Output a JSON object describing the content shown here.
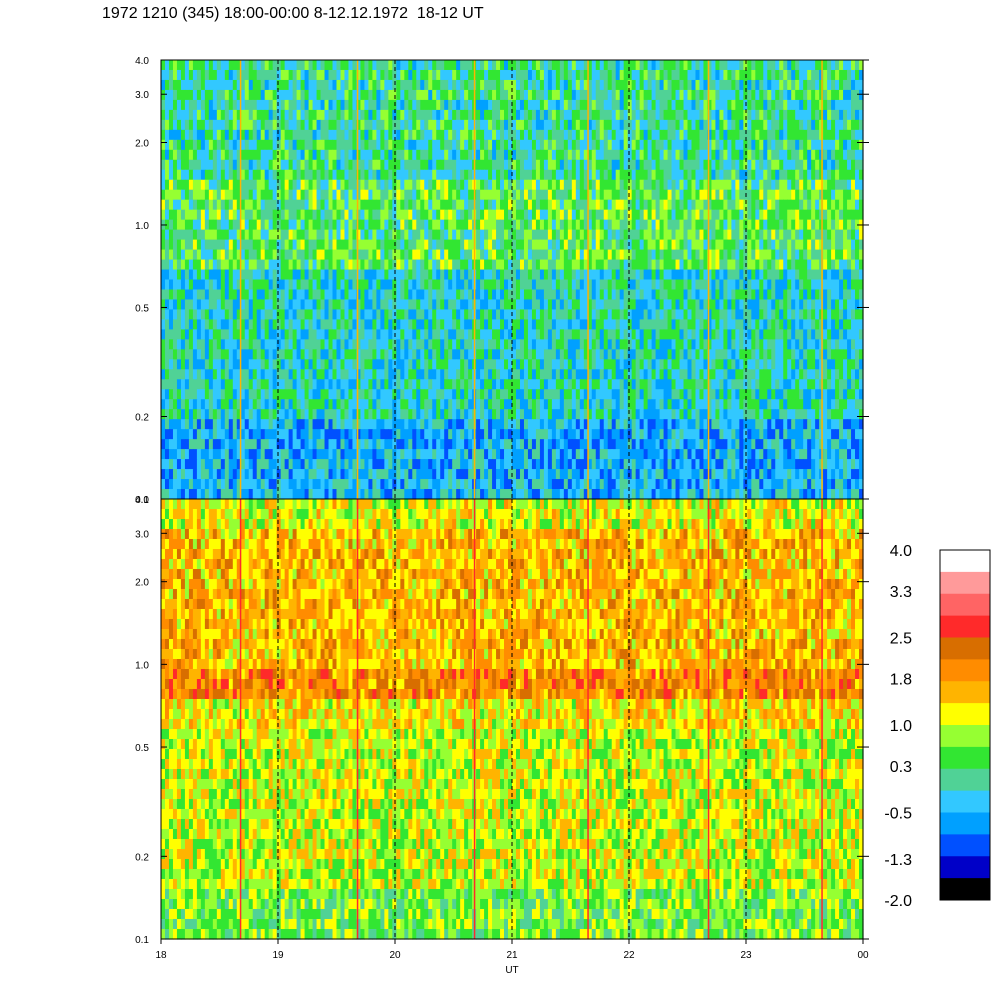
{
  "title": "1972 1210 (345) 18:00-00:00 8-12.12.1972  18-12 UT",
  "chart_data": [
    {
      "type": "heatmap",
      "panel": "top",
      "description_kind": "spectrogram",
      "x_range": [
        18,
        24
      ],
      "y_range": [
        0.1,
        4.0
      ],
      "y_scale": "log",
      "y_ticks": [
        "0.1",
        "0.2",
        "0.5",
        "1.0",
        "2.0",
        "3.0",
        "4.0"
      ],
      "y_tick_values": [
        0.1,
        0.2,
        0.5,
        1.0,
        2.0,
        3.0,
        4.0
      ],
      "vertical_dashed_lines_at": [
        19,
        20,
        21,
        22,
        23
      ],
      "dominant_levels_by_frequency": [
        {
          "from": 0.1,
          "to": 0.2,
          "level": -0.5
        },
        {
          "from": 0.2,
          "to": 0.7,
          "level": -0.1
        },
        {
          "from": 0.7,
          "to": 1.5,
          "level": 0.4
        },
        {
          "from": 1.5,
          "to": 4.0,
          "level": 0.1
        }
      ],
      "spike_times": [
        18.68,
        19.68,
        20.68,
        21.65,
        22.68,
        23.65
      ]
    },
    {
      "type": "heatmap",
      "panel": "bottom",
      "description_kind": "spectrogram",
      "x_range": [
        18,
        24
      ],
      "y_range": [
        0.1,
        4.0
      ],
      "y_scale": "log",
      "y_ticks": [
        "0.1",
        "0.2",
        "0.5",
        "1.0",
        "2.0",
        "3.0",
        "4.0"
      ],
      "y_tick_values": [
        0.1,
        0.2,
        0.5,
        1.0,
        2.0,
        3.0,
        4.0
      ],
      "x_ticks": [
        "18",
        "19",
        "20",
        "21",
        "22",
        "23",
        "00"
      ],
      "x_tick_values": [
        18,
        19,
        20,
        21,
        22,
        23,
        24
      ],
      "xlabel": "UT",
      "vertical_dashed_lines_at": [
        19,
        20,
        21,
        22,
        23
      ],
      "dominant_levels_by_frequency": [
        {
          "from": 0.1,
          "to": 0.15,
          "level": 0.6
        },
        {
          "from": 0.15,
          "to": 0.6,
          "level": 1.0
        },
        {
          "from": 0.6,
          "to": 0.75,
          "level": 1.3
        },
        {
          "from": 0.75,
          "to": 0.95,
          "level": 2.0
        },
        {
          "from": 0.95,
          "to": 3.0,
          "level": 1.6
        },
        {
          "from": 3.0,
          "to": 4.0,
          "level": 1.1
        }
      ],
      "spike_times": [
        18.68,
        19.68,
        20.68,
        21.65,
        22.68,
        23.65
      ]
    }
  ],
  "colorbar": {
    "labels": [
      "4.0",
      "3.3",
      "2.5",
      "1.8",
      "1.0",
      "0.3",
      "-0.5",
      "-1.3",
      "-2.0"
    ],
    "label_values": [
      4.0,
      3.3,
      2.5,
      1.8,
      1.0,
      0.3,
      -0.5,
      -1.3,
      -2.0
    ],
    "range": [
      -2.0,
      4.0
    ],
    "colors_top_to_bottom": [
      "#ffffff",
      "#ff9a9a",
      "#ff6464",
      "#ff2a2a",
      "#d86e00",
      "#ff8c00",
      "#ffb400",
      "#ffff00",
      "#96ff32",
      "#32e632",
      "#50d296",
      "#32c8ff",
      "#00a0ff",
      "#0050ff",
      "#0000c8",
      "#000000"
    ]
  }
}
